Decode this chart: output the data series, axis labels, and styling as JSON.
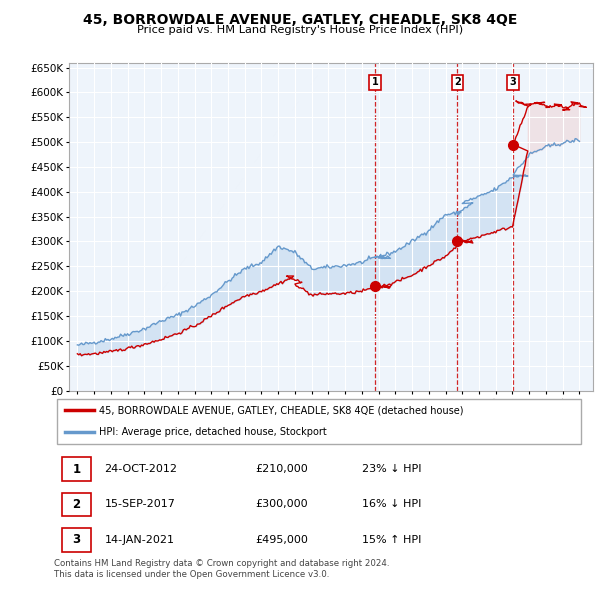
{
  "title": "45, BORROWDALE AVENUE, GATLEY, CHEADLE, SK8 4QE",
  "subtitle": "Price paid vs. HM Land Registry's House Price Index (HPI)",
  "legend_label_red": "45, BORROWDALE AVENUE, GATLEY, CHEADLE, SK8 4QE (detached house)",
  "legend_label_blue": "HPI: Average price, detached house, Stockport",
  "footer": "Contains HM Land Registry data © Crown copyright and database right 2024.\nThis data is licensed under the Open Government Licence v3.0.",
  "transactions": [
    {
      "num": "1",
      "date": "24-OCT-2012",
      "price": "£210,000",
      "hpi": "23% ↓ HPI",
      "year": 2012.79
    },
    {
      "num": "2",
      "date": "15-SEP-2017",
      "price": "£300,000",
      "hpi": "16% ↓ HPI",
      "year": 2017.71
    },
    {
      "num": "3",
      "date": "14-JAN-2021",
      "price": "£495,000",
      "hpi": "15% ↑ HPI",
      "year": 2021.04
    }
  ],
  "transaction_values": [
    210000,
    300000,
    495000
  ],
  "ylim": [
    0,
    660000
  ],
  "yticks": [
    0,
    50000,
    100000,
    150000,
    200000,
    250000,
    300000,
    350000,
    400000,
    450000,
    500000,
    550000,
    600000,
    650000
  ],
  "ytick_labels": [
    "£0",
    "£50K",
    "£100K",
    "£150K",
    "£200K",
    "£250K",
    "£300K",
    "£350K",
    "£400K",
    "£450K",
    "£500K",
    "£550K",
    "£600K",
    "£650K"
  ],
  "color_red": "#cc0000",
  "color_blue": "#6699cc",
  "color_fill": "#ddeeff",
  "color_vline": "#cc0000",
  "bg_color": "#ffffff",
  "grid_color": "#cccccc",
  "xlim_left": 1994.5,
  "xlim_right": 2025.8
}
